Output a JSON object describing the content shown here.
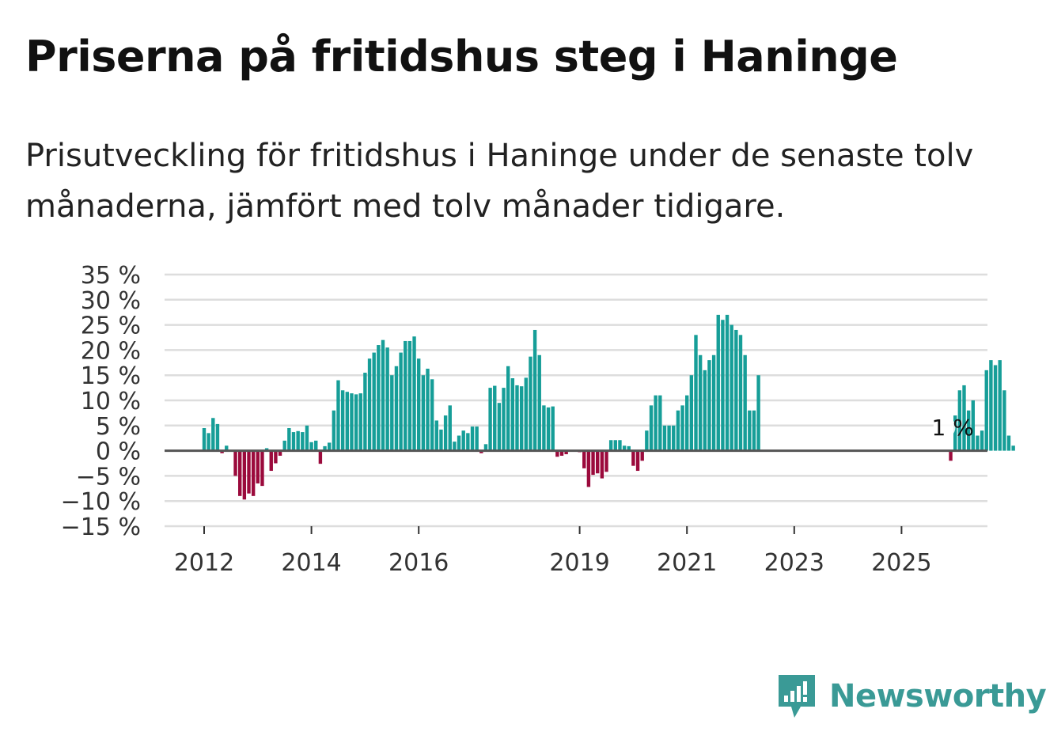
{
  "title": "Priserna på fritidshus steg i Haninge",
  "subtitle": "Prisutveckling för fritidshus i Haninge under de senaste tolv månaderna, jämfört med tolv månader tidigare.",
  "brand": {
    "name": "Newsworthy",
    "icon": "newsworthy-logo-icon"
  },
  "colors": {
    "positive": "#169e98",
    "negative": "#9b0a3c",
    "grid": "#dddddd",
    "baseline": "#555555",
    "brand": "#3a9a96"
  },
  "chart_data": {
    "type": "bar",
    "title": "Priserna på fritidshus steg i Haninge",
    "xlabel": "",
    "ylabel": "",
    "ylim": [
      -15,
      35
    ],
    "yticks": [
      35,
      30,
      25,
      20,
      15,
      10,
      5,
      0,
      -5,
      -10,
      -15
    ],
    "ytick_labels": [
      "35 %",
      "30 %",
      "25 %",
      "20 %",
      "15 %",
      "10 %",
      "5 %",
      "0 %",
      "−5 %",
      "−10 %",
      "−15 %"
    ],
    "xticks": [
      2012,
      2014,
      2016,
      2019,
      2021,
      2023,
      2025
    ],
    "xtick_labels": [
      "2012",
      "2014",
      "2016",
      "2019",
      "2021",
      "2023",
      "2025"
    ],
    "grid": true,
    "start": "2012-01",
    "frequency": "monthly",
    "annotation": {
      "text": "1 %",
      "month": "2025-12"
    },
    "values": [
      4.5,
      3.5,
      6.5,
      5.3,
      -0.5,
      1.0,
      0,
      -5.0,
      -9.0,
      -9.7,
      -8.5,
      -9.0,
      -6.5,
      -7.0,
      0.5,
      -4.0,
      -2.5,
      -1.0,
      2.0,
      4.5,
      3.7,
      3.9,
      3.7,
      5.0,
      1.7,
      2.0,
      -2.6,
      0.9,
      1.6,
      8.0,
      14.0,
      12.0,
      11.7,
      11.4,
      11.2,
      11.4,
      15.5,
      18.3,
      19.5,
      21.0,
      22.0,
      20.5,
      15.0,
      16.8,
      19.5,
      21.8,
      21.8,
      22.7,
      18.3,
      15.0,
      16.3,
      14.2,
      6.0,
      4.2,
      7.0,
      9.0,
      1.8,
      3.0,
      4.0,
      3.5,
      4.8,
      4.8,
      -0.5,
      1.3,
      12.5,
      12.9,
      9.5,
      12.5,
      16.8,
      14.4,
      13.0,
      12.8,
      14.5,
      18.7,
      24.0,
      19.0,
      9.0,
      8.6,
      8.8,
      -1.2,
      -1.0,
      -0.7,
      0,
      0,
      -0.3,
      -3.5,
      -7.2,
      -4.8,
      -4.5,
      -5.5,
      -4.2,
      2.1,
      2.1,
      2.1,
      1.0,
      0.9,
      -3.0,
      -4.0,
      -2.0,
      4.0,
      9.0,
      11.0,
      11.0,
      5.0,
      5.0,
      5.0,
      8.0,
      9.0,
      11.0,
      15.0,
      23.0,
      19.0,
      16.0,
      18.0,
      19.0,
      27.0,
      26.0,
      27.0,
      25.0,
      24.0,
      23.0,
      19.0,
      8.0,
      8.0,
      15.0,
      0,
      0,
      0,
      0,
      0,
      0,
      0,
      0,
      0,
      0,
      0,
      0,
      0,
      0,
      0,
      0,
      0,
      0,
      0,
      0,
      0,
      0,
      0,
      0,
      0,
      0,
      0,
      0,
      0,
      0,
      0,
      0,
      0,
      0,
      0,
      0,
      0,
      0,
      0,
      0,
      0,
      0,
      -2.0,
      7.0,
      12.0,
      13.0,
      8.0,
      10.0,
      3.0,
      4.0,
      16.0,
      18.0,
      17.0,
      18.0,
      12.0,
      3.0,
      1.0
    ]
  }
}
